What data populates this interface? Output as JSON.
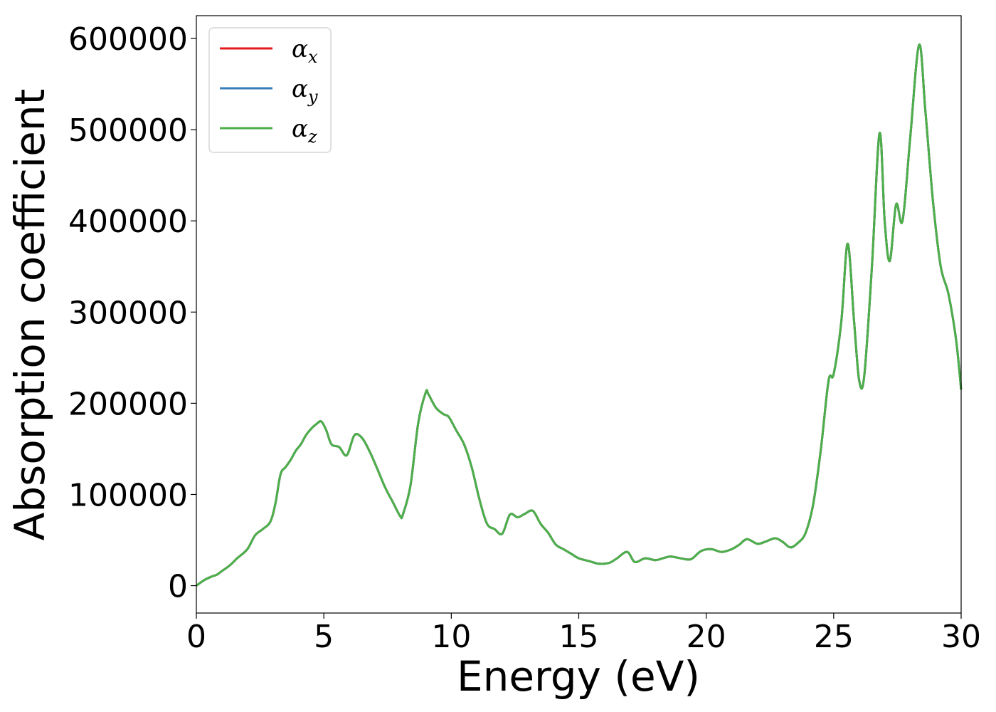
{
  "chart_data": {
    "type": "line",
    "title": "",
    "xlabel": "Energy (eV)",
    "ylabel": "Absorption coefficient",
    "xlim": [
      0,
      30
    ],
    "ylim": [
      -30000,
      625000
    ],
    "xticks": [
      0,
      5,
      10,
      15,
      20,
      25,
      30
    ],
    "yticks": [
      0,
      100000,
      200000,
      300000,
      400000,
      500000,
      600000
    ],
    "grid": false,
    "legend_placement": "top-left",
    "series": [
      {
        "name": "α",
        "subscript": "x",
        "color": "#e41a1c"
      },
      {
        "name": "α",
        "subscript": "y",
        "color": "#377eb8"
      },
      {
        "name": "α",
        "subscript": "z",
        "color": "#4daf4a"
      }
    ],
    "x": [
      0,
      0.3,
      0.6,
      0.8,
      1.0,
      1.3,
      1.6,
      2.0,
      2.3,
      2.6,
      2.9,
      3.1,
      3.3,
      3.5,
      3.7,
      3.9,
      4.1,
      4.3,
      4.5,
      4.7,
      4.9,
      5.1,
      5.3,
      5.6,
      5.9,
      6.2,
      6.5,
      6.8,
      7.1,
      7.4,
      7.7,
      8.0,
      8.1,
      8.4,
      8.7,
      9.0,
      9.1,
      9.4,
      9.7,
      9.9,
      10.2,
      10.5,
      10.8,
      11.1,
      11.4,
      11.7,
      12.0,
      12.3,
      12.6,
      12.9,
      13.2,
      13.5,
      13.8,
      14.1,
      14.4,
      14.7,
      15.0,
      15.4,
      15.8,
      16.2,
      16.5,
      16.9,
      17.2,
      17.6,
      18.0,
      18.3,
      18.6,
      19.0,
      19.4,
      19.8,
      20.2,
      20.6,
      21.0,
      21.3,
      21.6,
      22.0,
      22.3,
      22.7,
      23.0,
      23.3,
      23.6,
      23.9,
      24.2,
      24.5,
      24.8,
      25.0,
      25.3,
      25.55,
      25.8,
      26.0,
      26.2,
      26.5,
      26.8,
      27.0,
      27.2,
      27.45,
      27.7,
      28.0,
      28.35,
      28.6,
      28.9,
      29.2,
      29.5,
      29.8,
      30.0
    ],
    "values": [
      0,
      6000,
      10000,
      12000,
      16000,
      22000,
      30000,
      40000,
      55000,
      62000,
      70000,
      90000,
      122000,
      130000,
      138000,
      148000,
      155000,
      165000,
      172000,
      177000,
      180000,
      170000,
      155000,
      152000,
      143000,
      165000,
      162000,
      147000,
      128000,
      108000,
      92000,
      76000,
      78000,
      110000,
      178000,
      212000,
      210000,
      195000,
      188000,
      185000,
      170000,
      155000,
      130000,
      95000,
      68000,
      62000,
      57000,
      78000,
      75000,
      79000,
      82000,
      68000,
      58000,
      45000,
      40000,
      35000,
      30000,
      27000,
      24000,
      25000,
      30000,
      37000,
      26000,
      30000,
      28000,
      30000,
      32000,
      30000,
      29000,
      38000,
      40000,
      37000,
      40000,
      45000,
      51000,
      46000,
      48000,
      52000,
      48000,
      42000,
      47000,
      58000,
      90000,
      150000,
      225000,
      232000,
      290000,
      375000,
      290000,
      225000,
      230000,
      350000,
      496000,
      400000,
      356000,
      418000,
      400000,
      490000,
      593000,
      520000,
      420000,
      350000,
      320000,
      270000,
      215000
    ]
  }
}
